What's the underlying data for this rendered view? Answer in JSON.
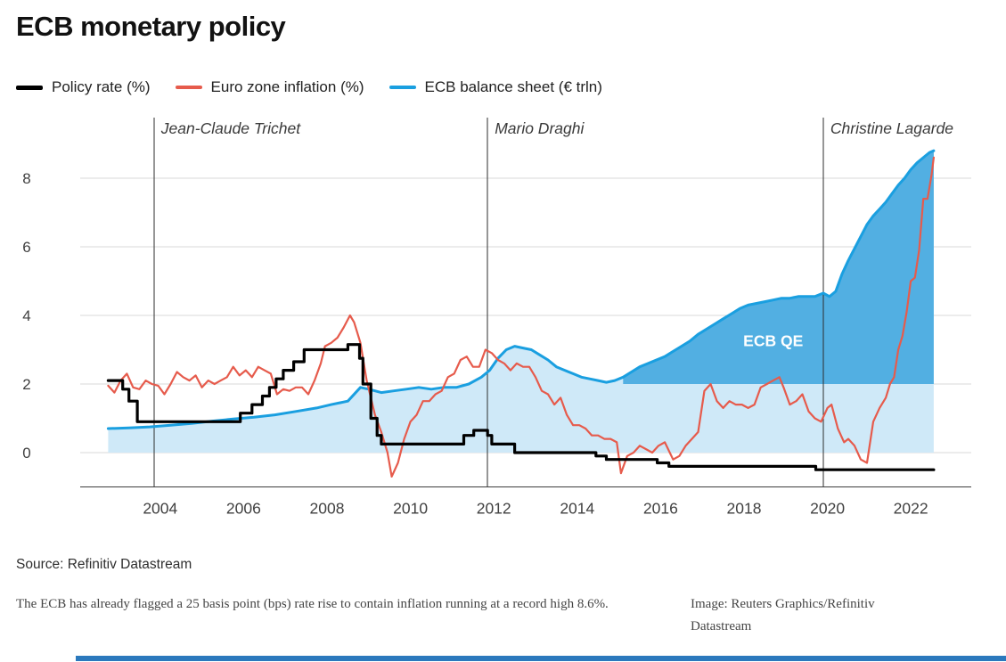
{
  "title": "ECB monetary policy",
  "legend": [
    {
      "label": "Policy rate (%)",
      "color": "#000000"
    },
    {
      "label": "Euro zone inflation (%)",
      "color": "#e65b4c"
    },
    {
      "label": "ECB balance sheet (€ trln)",
      "color": "#1a9fe0"
    }
  ],
  "source": "Source: Refinitiv Datastream",
  "caption": "The ECB has already flagged a 25 basis point (bps) rate rise to contain inflation running at a record high 8.6%.",
  "credit": "Image: Reuters Graphics/Refinitiv Datastream",
  "colors": {
    "gridline": "#d8d8d8",
    "axis_line": "#3d3d3d",
    "tick_text": "#404040",
    "president_line": "#2e2e2e",
    "president_text": "#3a3a3a",
    "balance_sheet_fill": "#cfe9f8",
    "qe_fill": "#52afe2",
    "qe_label_text": "#ffffff",
    "footer_bar": "#2b79bd"
  },
  "chart_data": {
    "type": "line",
    "title": "ECB monetary policy",
    "xlabel": "",
    "ylabel": "",
    "x_axis": {
      "range": [
        2002.08,
        2023.45
      ],
      "ticks": [
        2004,
        2006,
        2008,
        2010,
        2012,
        2014,
        2016,
        2018,
        2020,
        2022
      ]
    },
    "y_axis": {
      "range": [
        -1.0,
        9.87
      ],
      "ticks": [
        0,
        2,
        4,
        6,
        8
      ],
      "gridlines": true
    },
    "qe_area_start": 2015.05,
    "qe_baseline": 2.0,
    "qe_label": {
      "text": "ECB QE",
      "x": 2018.7,
      "y": 3.1
    },
    "presidents": [
      {
        "label": "Jean-Claude Trichet",
        "x": 2003.85
      },
      {
        "label": "Mario Draghi",
        "x": 2011.85
      },
      {
        "label": "Christine Lagarde",
        "x": 2019.9
      }
    ],
    "series": [
      {
        "id": "policy_rate",
        "name": "Policy rate (%)",
        "color": "#000000",
        "width": 3.2,
        "style": "step",
        "points": [
          [
            2002.75,
            2.1
          ],
          [
            2003.1,
            2.1
          ],
          [
            2003.1,
            1.85
          ],
          [
            2003.25,
            1.85
          ],
          [
            2003.25,
            1.5
          ],
          [
            2003.45,
            1.5
          ],
          [
            2003.45,
            0.9
          ],
          [
            2005.92,
            0.9
          ],
          [
            2005.92,
            1.15
          ],
          [
            2006.2,
            1.15
          ],
          [
            2006.2,
            1.4
          ],
          [
            2006.45,
            1.4
          ],
          [
            2006.45,
            1.65
          ],
          [
            2006.62,
            1.65
          ],
          [
            2006.62,
            1.9
          ],
          [
            2006.78,
            1.9
          ],
          [
            2006.78,
            2.15
          ],
          [
            2006.95,
            2.15
          ],
          [
            2006.95,
            2.4
          ],
          [
            2007.2,
            2.4
          ],
          [
            2007.2,
            2.65
          ],
          [
            2007.45,
            2.65
          ],
          [
            2007.45,
            3.0
          ],
          [
            2008.5,
            3.0
          ],
          [
            2008.5,
            3.15
          ],
          [
            2008.78,
            3.15
          ],
          [
            2008.78,
            2.75
          ],
          [
            2008.86,
            2.75
          ],
          [
            2008.86,
            2.0
          ],
          [
            2009.05,
            2.0
          ],
          [
            2009.05,
            1.0
          ],
          [
            2009.2,
            1.0
          ],
          [
            2009.2,
            0.5
          ],
          [
            2009.3,
            0.5
          ],
          [
            2009.3,
            0.25
          ],
          [
            2011.28,
            0.25
          ],
          [
            2011.28,
            0.5
          ],
          [
            2011.52,
            0.5
          ],
          [
            2011.52,
            0.65
          ],
          [
            2011.85,
            0.65
          ],
          [
            2011.85,
            0.5
          ],
          [
            2011.95,
            0.5
          ],
          [
            2011.95,
            0.25
          ],
          [
            2012.5,
            0.25
          ],
          [
            2012.5,
            0.0
          ],
          [
            2014.45,
            0.0
          ],
          [
            2014.45,
            -0.1
          ],
          [
            2014.7,
            -0.1
          ],
          [
            2014.7,
            -0.2
          ],
          [
            2015.92,
            -0.2
          ],
          [
            2015.92,
            -0.3
          ],
          [
            2016.2,
            -0.3
          ],
          [
            2016.2,
            -0.4
          ],
          [
            2019.72,
            -0.4
          ],
          [
            2019.72,
            -0.5
          ],
          [
            2022.55,
            -0.5
          ]
        ]
      },
      {
        "id": "inflation",
        "name": "Euro zone inflation (%)",
        "color": "#e65b4c",
        "width": 2.2,
        "style": "line",
        "points": [
          [
            2002.75,
            1.95
          ],
          [
            2002.9,
            1.75
          ],
          [
            2003.05,
            2.1
          ],
          [
            2003.2,
            2.3
          ],
          [
            2003.35,
            1.9
          ],
          [
            2003.5,
            1.85
          ],
          [
            2003.65,
            2.1
          ],
          [
            2003.8,
            2.0
          ],
          [
            2003.95,
            1.95
          ],
          [
            2004.1,
            1.7
          ],
          [
            2004.25,
            2.0
          ],
          [
            2004.4,
            2.35
          ],
          [
            2004.55,
            2.2
          ],
          [
            2004.7,
            2.1
          ],
          [
            2004.85,
            2.25
          ],
          [
            2005.0,
            1.9
          ],
          [
            2005.15,
            2.1
          ],
          [
            2005.3,
            2.0
          ],
          [
            2005.45,
            2.1
          ],
          [
            2005.6,
            2.2
          ],
          [
            2005.75,
            2.5
          ],
          [
            2005.9,
            2.25
          ],
          [
            2006.05,
            2.4
          ],
          [
            2006.2,
            2.2
          ],
          [
            2006.35,
            2.5
          ],
          [
            2006.5,
            2.4
          ],
          [
            2006.65,
            2.3
          ],
          [
            2006.8,
            1.7
          ],
          [
            2006.95,
            1.85
          ],
          [
            2007.1,
            1.8
          ],
          [
            2007.25,
            1.9
          ],
          [
            2007.4,
            1.9
          ],
          [
            2007.55,
            1.7
          ],
          [
            2007.7,
            2.1
          ],
          [
            2007.85,
            2.6
          ],
          [
            2007.95,
            3.1
          ],
          [
            2008.1,
            3.2
          ],
          [
            2008.25,
            3.35
          ],
          [
            2008.4,
            3.65
          ],
          [
            2008.55,
            4.0
          ],
          [
            2008.65,
            3.8
          ],
          [
            2008.8,
            3.2
          ],
          [
            2008.95,
            2.1
          ],
          [
            2009.05,
            1.6
          ],
          [
            2009.15,
            1.1
          ],
          [
            2009.3,
            0.6
          ],
          [
            2009.45,
            0.0
          ],
          [
            2009.55,
            -0.7
          ],
          [
            2009.7,
            -0.3
          ],
          [
            2009.85,
            0.4
          ],
          [
            2010.0,
            0.9
          ],
          [
            2010.15,
            1.1
          ],
          [
            2010.3,
            1.5
          ],
          [
            2010.45,
            1.5
          ],
          [
            2010.6,
            1.7
          ],
          [
            2010.75,
            1.8
          ],
          [
            2010.9,
            2.2
          ],
          [
            2011.05,
            2.3
          ],
          [
            2011.2,
            2.7
          ],
          [
            2011.35,
            2.8
          ],
          [
            2011.5,
            2.5
          ],
          [
            2011.65,
            2.5
          ],
          [
            2011.8,
            3.0
          ],
          [
            2011.95,
            2.9
          ],
          [
            2012.1,
            2.7
          ],
          [
            2012.25,
            2.6
          ],
          [
            2012.4,
            2.4
          ],
          [
            2012.55,
            2.6
          ],
          [
            2012.7,
            2.5
          ],
          [
            2012.85,
            2.5
          ],
          [
            2013.0,
            2.2
          ],
          [
            2013.15,
            1.8
          ],
          [
            2013.3,
            1.7
          ],
          [
            2013.45,
            1.4
          ],
          [
            2013.6,
            1.6
          ],
          [
            2013.75,
            1.1
          ],
          [
            2013.9,
            0.8
          ],
          [
            2014.05,
            0.8
          ],
          [
            2014.2,
            0.7
          ],
          [
            2014.35,
            0.5
          ],
          [
            2014.5,
            0.5
          ],
          [
            2014.65,
            0.4
          ],
          [
            2014.8,
            0.4
          ],
          [
            2014.95,
            0.3
          ],
          [
            2015.05,
            -0.6
          ],
          [
            2015.2,
            -0.1
          ],
          [
            2015.35,
            0.0
          ],
          [
            2015.5,
            0.2
          ],
          [
            2015.65,
            0.1
          ],
          [
            2015.8,
            0.0
          ],
          [
            2015.95,
            0.2
          ],
          [
            2016.1,
            0.3
          ],
          [
            2016.3,
            -0.2
          ],
          [
            2016.45,
            -0.1
          ],
          [
            2016.6,
            0.2
          ],
          [
            2016.75,
            0.4
          ],
          [
            2016.9,
            0.6
          ],
          [
            2017.05,
            1.8
          ],
          [
            2017.2,
            2.0
          ],
          [
            2017.35,
            1.5
          ],
          [
            2017.5,
            1.3
          ],
          [
            2017.65,
            1.5
          ],
          [
            2017.8,
            1.4
          ],
          [
            2017.95,
            1.4
          ],
          [
            2018.1,
            1.3
          ],
          [
            2018.25,
            1.4
          ],
          [
            2018.4,
            1.9
          ],
          [
            2018.55,
            2.0
          ],
          [
            2018.7,
            2.1
          ],
          [
            2018.85,
            2.2
          ],
          [
            2018.95,
            1.9
          ],
          [
            2019.1,
            1.4
          ],
          [
            2019.25,
            1.5
          ],
          [
            2019.4,
            1.7
          ],
          [
            2019.55,
            1.2
          ],
          [
            2019.7,
            1.0
          ],
          [
            2019.85,
            0.9
          ],
          [
            2020.0,
            1.3
          ],
          [
            2020.1,
            1.4
          ],
          [
            2020.25,
            0.7
          ],
          [
            2020.4,
            0.3
          ],
          [
            2020.5,
            0.4
          ],
          [
            2020.65,
            0.2
          ],
          [
            2020.8,
            -0.2
          ],
          [
            2020.95,
            -0.3
          ],
          [
            2021.1,
            0.9
          ],
          [
            2021.25,
            1.3
          ],
          [
            2021.4,
            1.6
          ],
          [
            2021.5,
            2.0
          ],
          [
            2021.6,
            2.2
          ],
          [
            2021.7,
            3.0
          ],
          [
            2021.8,
            3.4
          ],
          [
            2021.9,
            4.1
          ],
          [
            2022.0,
            5.0
          ],
          [
            2022.1,
            5.1
          ],
          [
            2022.2,
            5.9
          ],
          [
            2022.3,
            7.4
          ],
          [
            2022.4,
            7.4
          ],
          [
            2022.5,
            8.1
          ],
          [
            2022.55,
            8.6
          ]
        ]
      },
      {
        "id": "balance_sheet",
        "name": "ECB balance sheet (€ trln)",
        "color": "#1a9fe0",
        "width": 3,
        "style": "area",
        "points": [
          [
            2002.75,
            0.7
          ],
          [
            2003.25,
            0.72
          ],
          [
            2003.75,
            0.75
          ],
          [
            2004.25,
            0.8
          ],
          [
            2004.75,
            0.85
          ],
          [
            2005.25,
            0.92
          ],
          [
            2005.75,
            0.98
          ],
          [
            2006.25,
            1.03
          ],
          [
            2006.75,
            1.1
          ],
          [
            2007.25,
            1.2
          ],
          [
            2007.75,
            1.3
          ],
          [
            2008.1,
            1.4
          ],
          [
            2008.5,
            1.5
          ],
          [
            2008.8,
            1.9
          ],
          [
            2009.0,
            1.85
          ],
          [
            2009.3,
            1.75
          ],
          [
            2009.6,
            1.8
          ],
          [
            2009.9,
            1.85
          ],
          [
            2010.2,
            1.9
          ],
          [
            2010.5,
            1.85
          ],
          [
            2010.8,
            1.9
          ],
          [
            2011.1,
            1.9
          ],
          [
            2011.4,
            2.0
          ],
          [
            2011.7,
            2.2
          ],
          [
            2011.9,
            2.4
          ],
          [
            2012.1,
            2.75
          ],
          [
            2012.3,
            3.0
          ],
          [
            2012.5,
            3.1
          ],
          [
            2012.7,
            3.05
          ],
          [
            2012.9,
            3.0
          ],
          [
            2013.1,
            2.85
          ],
          [
            2013.3,
            2.7
          ],
          [
            2013.5,
            2.5
          ],
          [
            2013.7,
            2.4
          ],
          [
            2013.9,
            2.3
          ],
          [
            2014.1,
            2.2
          ],
          [
            2014.3,
            2.15
          ],
          [
            2014.5,
            2.1
          ],
          [
            2014.7,
            2.05
          ],
          [
            2014.9,
            2.1
          ],
          [
            2015.1,
            2.2
          ],
          [
            2015.3,
            2.35
          ],
          [
            2015.5,
            2.5
          ],
          [
            2015.7,
            2.6
          ],
          [
            2015.9,
            2.7
          ],
          [
            2016.1,
            2.8
          ],
          [
            2016.3,
            2.95
          ],
          [
            2016.5,
            3.1
          ],
          [
            2016.7,
            3.25
          ],
          [
            2016.9,
            3.45
          ],
          [
            2017.1,
            3.6
          ],
          [
            2017.3,
            3.75
          ],
          [
            2017.5,
            3.9
          ],
          [
            2017.7,
            4.05
          ],
          [
            2017.9,
            4.2
          ],
          [
            2018.1,
            4.3
          ],
          [
            2018.3,
            4.35
          ],
          [
            2018.5,
            4.4
          ],
          [
            2018.7,
            4.45
          ],
          [
            2018.9,
            4.5
          ],
          [
            2019.1,
            4.5
          ],
          [
            2019.3,
            4.55
          ],
          [
            2019.5,
            4.55
          ],
          [
            2019.7,
            4.55
          ],
          [
            2019.9,
            4.65
          ],
          [
            2020.05,
            4.55
          ],
          [
            2020.2,
            4.7
          ],
          [
            2020.35,
            5.2
          ],
          [
            2020.5,
            5.6
          ],
          [
            2020.65,
            5.95
          ],
          [
            2020.8,
            6.3
          ],
          [
            2020.95,
            6.65
          ],
          [
            2021.1,
            6.9
          ],
          [
            2021.25,
            7.1
          ],
          [
            2021.4,
            7.3
          ],
          [
            2021.55,
            7.55
          ],
          [
            2021.7,
            7.8
          ],
          [
            2021.85,
            8.0
          ],
          [
            2022.0,
            8.25
          ],
          [
            2022.15,
            8.45
          ],
          [
            2022.3,
            8.6
          ],
          [
            2022.45,
            8.75
          ],
          [
            2022.55,
            8.8
          ]
        ]
      }
    ]
  }
}
